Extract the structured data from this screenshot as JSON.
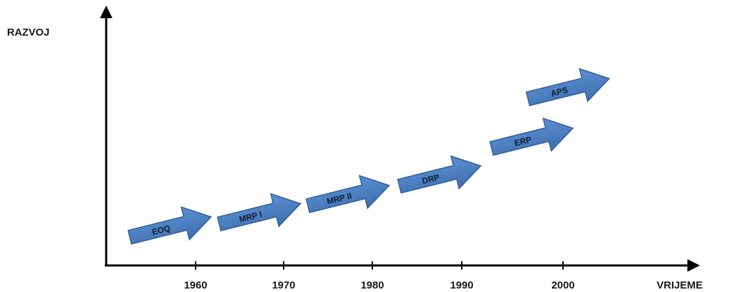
{
  "axes": {
    "y_label": "RAZVOJ",
    "x_label": "VRIJEME"
  },
  "ticks": [
    "1960",
    "1970",
    "1980",
    "1990",
    "2000"
  ],
  "stages": [
    {
      "label": "EOQ"
    },
    {
      "label": "MRP I"
    },
    {
      "label": "MRP II"
    },
    {
      "label": "DRP"
    },
    {
      "label": "ERP"
    },
    {
      "label": "APS"
    }
  ],
  "colors": {
    "arrow_fill": "#4a7ec0",
    "arrow_stroke": "#2f5f9a",
    "axis": "#000000"
  }
}
